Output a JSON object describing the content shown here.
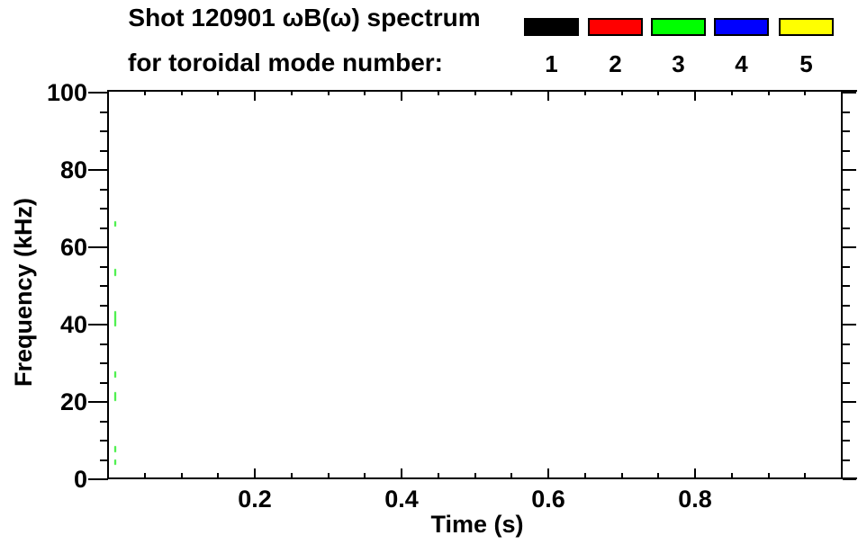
{
  "header": {
    "title": "Shot 120901 ωB(ω) spectrum",
    "subtitle": "for toroidal mode number:"
  },
  "legend": {
    "items": [
      {
        "label": "1",
        "color": "#000000"
      },
      {
        "label": "2",
        "color": "#ff0000"
      },
      {
        "label": "3",
        "color": "#00ff00"
      },
      {
        "label": "4",
        "color": "#0000ff"
      },
      {
        "label": "5",
        "color": "#ffff00"
      }
    ]
  },
  "axes": {
    "x_title": "Time (s)",
    "y_title": "Frequency (kHz)"
  },
  "chart_data": {
    "type": "scatter",
    "title": "Shot 120901 ωB(ω) spectrum for toroidal mode number:",
    "xlabel": "Time (s)",
    "ylabel": "Frequency (kHz)",
    "xlim": [
      0,
      1.0
    ],
    "ylim": [
      0,
      100
    ],
    "x_major_ticks": [
      {
        "value": 0.2,
        "label": "0.2"
      },
      {
        "value": 0.4,
        "label": "0.4"
      },
      {
        "value": 0.6,
        "label": "0.6"
      },
      {
        "value": 0.8,
        "label": "0.8"
      }
    ],
    "x_minor_step": 0.05,
    "y_major_ticks": [
      {
        "value": 0,
        "label": "0"
      },
      {
        "value": 20,
        "label": "20"
      },
      {
        "value": 40,
        "label": "40"
      },
      {
        "value": 60,
        "label": "60"
      },
      {
        "value": 80,
        "label": "80"
      },
      {
        "value": 100,
        "label": "100"
      }
    ],
    "y_minor_step": 5,
    "grid": false,
    "legend_position": "top-right-above-plot",
    "series": [
      {
        "name": "1",
        "color": "#000000",
        "points": []
      },
      {
        "name": "2",
        "color": "#ff0000",
        "points": []
      },
      {
        "name": "3",
        "color": "#33ee33",
        "points": [
          {
            "time": 0.008,
            "frequency": 66.0,
            "spread_khz": 1.4
          },
          {
            "time": 0.008,
            "frequency": 53.5,
            "spread_khz": 1.9
          },
          {
            "time": 0.008,
            "frequency": 41.5,
            "spread_khz": 4.0
          },
          {
            "time": 0.008,
            "frequency": 27.0,
            "spread_khz": 1.6
          },
          {
            "time": 0.008,
            "frequency": 21.5,
            "spread_khz": 2.3
          },
          {
            "time": 0.008,
            "frequency": 7.8,
            "spread_khz": 1.6
          },
          {
            "time": 0.008,
            "frequency": 4.5,
            "spread_khz": 1.4
          }
        ]
      },
      {
        "name": "4",
        "color": "#0000ff",
        "points": []
      },
      {
        "name": "5",
        "color": "#ffff00",
        "points": []
      }
    ]
  }
}
